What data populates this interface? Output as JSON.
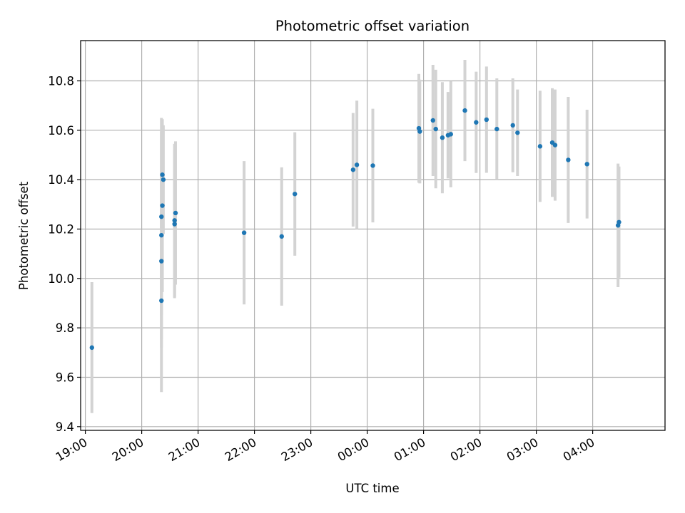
{
  "chart_data": {
    "type": "scatter",
    "title": "Photometric offset variation",
    "xlabel": "UTC time",
    "ylabel": "Photometric offset",
    "x_ticks": [
      "19:00",
      "20:00",
      "21:00",
      "22:00",
      "23:00",
      "00:00",
      "01:00",
      "02:00",
      "03:00",
      "04:00"
    ],
    "y_ticks": [
      "9.4",
      "9.6",
      "9.8",
      "10.0",
      "10.2",
      "10.4",
      "10.6",
      "10.8"
    ],
    "x_range": [
      "18:55",
      "05:17"
    ],
    "ylim": [
      9.385,
      10.963
    ],
    "grid": true,
    "colors": {
      "points": "#1f77b4",
      "errorbars": "#d3d3d3",
      "grid": "#b0b0b0"
    },
    "points": [
      {
        "x": "19:07",
        "y": 9.72,
        "yerr": 0.265
      },
      {
        "x": "20:21",
        "y": 9.91,
        "yerr": 0.37
      },
      {
        "x": "20:21",
        "y": 10.07,
        "yerr": 0.35
      },
      {
        "x": "20:21",
        "y": 10.175,
        "yerr": 0.42
      },
      {
        "x": "20:21",
        "y": 10.25,
        "yerr": 0.4
      },
      {
        "x": "20:22",
        "y": 10.295,
        "yerr": 0.35
      },
      {
        "x": "20:22",
        "y": 10.42,
        "yerr": 0.19
      },
      {
        "x": "20:23",
        "y": 10.4,
        "yerr": 0.22
      },
      {
        "x": "20:35",
        "y": 10.22,
        "yerr": 0.3
      },
      {
        "x": "20:35",
        "y": 10.235,
        "yerr": 0.31
      },
      {
        "x": "20:36",
        "y": 10.265,
        "yerr": 0.29
      },
      {
        "x": "21:49",
        "y": 10.185,
        "yerr": 0.29
      },
      {
        "x": "22:29",
        "y": 10.17,
        "yerr": 0.28
      },
      {
        "x": "22:43",
        "y": 10.342,
        "yerr": 0.25
      },
      {
        "x": "23:45",
        "y": 10.44,
        "yerr": 0.23
      },
      {
        "x": "23:49",
        "y": 10.46,
        "yerr": 0.26
      },
      {
        "x": "00:06",
        "y": 10.457,
        "yerr": 0.23
      },
      {
        "x": "00:55",
        "y": 10.608,
        "yerr": 0.22
      },
      {
        "x": "00:56",
        "y": 10.595,
        "yerr": 0.21
      },
      {
        "x": "01:10",
        "y": 10.64,
        "yerr": 0.225
      },
      {
        "x": "01:13",
        "y": 10.605,
        "yerr": 0.24
      },
      {
        "x": "01:20",
        "y": 10.57,
        "yerr": 0.225
      },
      {
        "x": "01:26",
        "y": 10.58,
        "yerr": 0.175
      },
      {
        "x": "01:29",
        "y": 10.584,
        "yerr": 0.215
      },
      {
        "x": "01:44",
        "y": 10.68,
        "yerr": 0.205
      },
      {
        "x": "01:56",
        "y": 10.632,
        "yerr": 0.205
      },
      {
        "x": "02:07",
        "y": 10.643,
        "yerr": 0.215
      },
      {
        "x": "02:18",
        "y": 10.605,
        "yerr": 0.205
      },
      {
        "x": "02:35",
        "y": 10.62,
        "yerr": 0.19
      },
      {
        "x": "02:40",
        "y": 10.59,
        "yerr": 0.175
      },
      {
        "x": "03:04",
        "y": 10.535,
        "yerr": 0.225
      },
      {
        "x": "03:17",
        "y": 10.55,
        "yerr": 0.22
      },
      {
        "x": "03:20",
        "y": 10.54,
        "yerr": 0.225
      },
      {
        "x": "03:34",
        "y": 10.48,
        "yerr": 0.255
      },
      {
        "x": "03:54",
        "y": 10.463,
        "yerr": 0.22
      },
      {
        "x": "04:27",
        "y": 10.215,
        "yerr": 0.25
      },
      {
        "x": "04:28",
        "y": 10.228,
        "yerr": 0.225
      }
    ]
  }
}
